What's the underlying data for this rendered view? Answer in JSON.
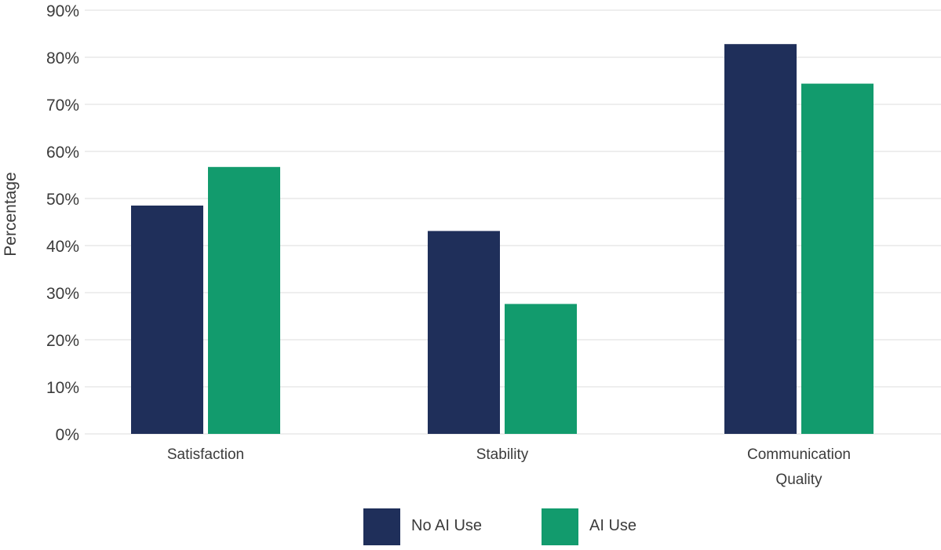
{
  "chart_data": {
    "type": "bar",
    "title": "",
    "xlabel": "",
    "ylabel": "Percentage",
    "ylim": [
      0,
      90
    ],
    "yticks": [
      0,
      10,
      20,
      30,
      40,
      50,
      60,
      70,
      80,
      90
    ],
    "ytick_labels": [
      "0%",
      "10%",
      "20%",
      "30%",
      "40%",
      "50%",
      "60%",
      "70%",
      "80%",
      "90%"
    ],
    "grid": true,
    "legend_position": "bottom-center",
    "categories": [
      "Satisfaction",
      "Stability",
      "Communication Quality"
    ],
    "category_label_lines": [
      [
        "Satisfaction"
      ],
      [
        "Stability"
      ],
      [
        "Communication",
        "Quality"
      ]
    ],
    "series": [
      {
        "name": "No AI Use",
        "color": "#1f2f5a",
        "values": [
          48.5,
          43.1,
          82.8
        ]
      },
      {
        "name": "AI Use",
        "color": "#129b6d",
        "values": [
          56.7,
          27.6,
          74.4
        ]
      }
    ],
    "colors": {
      "grid": "#dcdcdc",
      "axis_text": "#3b3b3b"
    }
  }
}
